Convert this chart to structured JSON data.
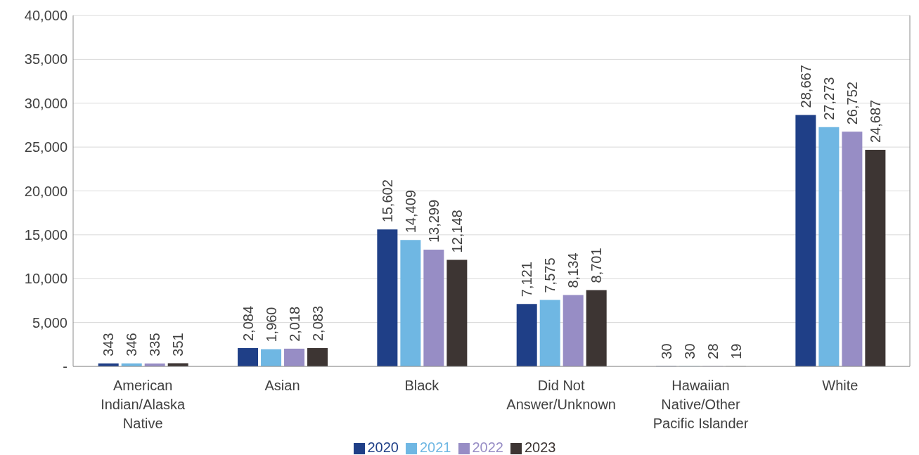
{
  "chart_data": {
    "type": "bar",
    "categories": [
      "American Indian/Alaska Native",
      "Asian",
      "Black",
      "Did Not Answer/Unknown",
      "Hawaiian Native/Other Pacific Islander",
      "White"
    ],
    "series": [
      {
        "name": "2020",
        "color": "#1f3f87",
        "values": [
          343,
          2084,
          15602,
          7121,
          30,
          28667
        ],
        "value_labels": [
          "343",
          "2,084",
          "15,602",
          "7,121",
          "30",
          "28,667"
        ]
      },
      {
        "name": "2021",
        "color": "#6fb7e3",
        "values": [
          346,
          1960,
          14409,
          7575,
          30,
          27273
        ],
        "value_labels": [
          "346",
          "1,960",
          "14,409",
          "7,575",
          "30",
          "27,273"
        ]
      },
      {
        "name": "2022",
        "color": "#978dc5",
        "values": [
          335,
          2018,
          13299,
          8134,
          28,
          26752
        ],
        "value_labels": [
          "335",
          "2,018",
          "13,299",
          "8,134",
          "28",
          "26,752"
        ]
      },
      {
        "name": "2023",
        "color": "#3d3533",
        "values": [
          351,
          2083,
          12148,
          8701,
          19,
          24687
        ],
        "value_labels": [
          "351",
          "2,083",
          "12,148",
          "8,701",
          "19",
          "24,687"
        ]
      }
    ],
    "ylim": [
      0,
      40000
    ],
    "yticks": [
      {
        "value": 0,
        "label": "-"
      },
      {
        "value": 5000,
        "label": "5,000"
      },
      {
        "value": 10000,
        "label": "10,000"
      },
      {
        "value": 15000,
        "label": "15,000"
      },
      {
        "value": 20000,
        "label": "20,000"
      },
      {
        "value": 25000,
        "label": "25,000"
      },
      {
        "value": 30000,
        "label": "30,000"
      },
      {
        "value": 35000,
        "label": "35,000"
      },
      {
        "value": 40000,
        "label": "40,000"
      }
    ],
    "grid": "y",
    "legend": "bottom"
  }
}
